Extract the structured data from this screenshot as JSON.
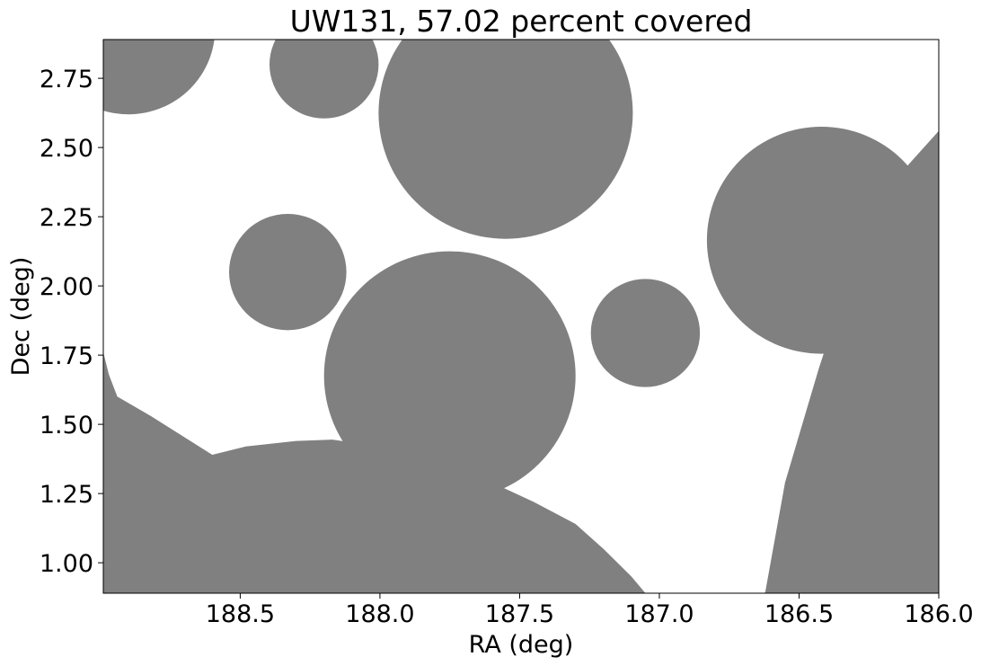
{
  "chart_data": {
    "type": "scatter",
    "title": "UW131, 57.02 percent covered",
    "xlabel": "RA (deg)",
    "ylabel": "Dec (deg)",
    "xlim": [
      188.99,
      186.0
    ],
    "ylim": [
      0.89,
      2.89
    ],
    "x_inverted": true,
    "xticks": [
      188.5,
      188.0,
      187.5,
      187.0,
      186.5,
      186.0
    ],
    "xtick_labels": [
      "188.5",
      "188.0",
      "187.5",
      "187.0",
      "186.5",
      "186.0"
    ],
    "yticks": [
      1.0,
      1.25,
      1.5,
      1.75,
      2.0,
      2.25,
      2.5,
      2.75
    ],
    "ytick_labels": [
      "1.00",
      "1.25",
      "1.50",
      "1.75",
      "2.00",
      "2.25",
      "2.50",
      "2.75"
    ],
    "grid": false,
    "fill_color": "#808080",
    "coverage_percent": 57.02,
    "circles": [
      {
        "ra": 188.9,
        "dec": 2.93,
        "r": 0.31
      },
      {
        "ra": 188.2,
        "dec": 2.8,
        "r": 0.195
      },
      {
        "ra": 187.55,
        "dec": 2.625,
        "r": 0.455
      },
      {
        "ra": 188.33,
        "dec": 2.05,
        "r": 0.21
      },
      {
        "ra": 187.75,
        "dec": 1.675,
        "r": 0.45
      },
      {
        "ra": 187.05,
        "dec": 1.83,
        "r": 0.195
      },
      {
        "ra": 186.42,
        "dec": 2.165,
        "r": 0.41
      }
    ],
    "polygons": [
      [
        [
          189.2,
          0.55
        ],
        [
          189.2,
          1.8
        ],
        [
          189.0,
          1.8
        ],
        [
          188.97,
          1.68
        ],
        [
          188.94,
          1.6
        ],
        [
          188.82,
          1.53
        ],
        [
          188.6,
          1.39
        ],
        [
          188.48,
          1.42
        ],
        [
          188.3,
          1.44
        ],
        [
          188.17,
          1.445
        ],
        [
          188.0,
          1.42
        ],
        [
          187.78,
          1.35
        ],
        [
          187.6,
          1.29
        ],
        [
          187.45,
          1.22
        ],
        [
          187.3,
          1.14
        ],
        [
          187.2,
          1.05
        ],
        [
          187.1,
          0.95
        ],
        [
          187.0,
          0.83
        ],
        [
          186.9,
          0.7
        ],
        [
          186.8,
          0.55
        ]
      ],
      [
        [
          186.7,
          0.55
        ],
        [
          186.62,
          0.9
        ],
        [
          186.55,
          1.29
        ],
        [
          186.43,
          1.7
        ],
        [
          186.3,
          2.1
        ],
        [
          186.16,
          2.38
        ],
        [
          186.0,
          2.56
        ],
        [
          185.8,
          2.7
        ],
        [
          185.8,
          0.55
        ]
      ]
    ]
  }
}
